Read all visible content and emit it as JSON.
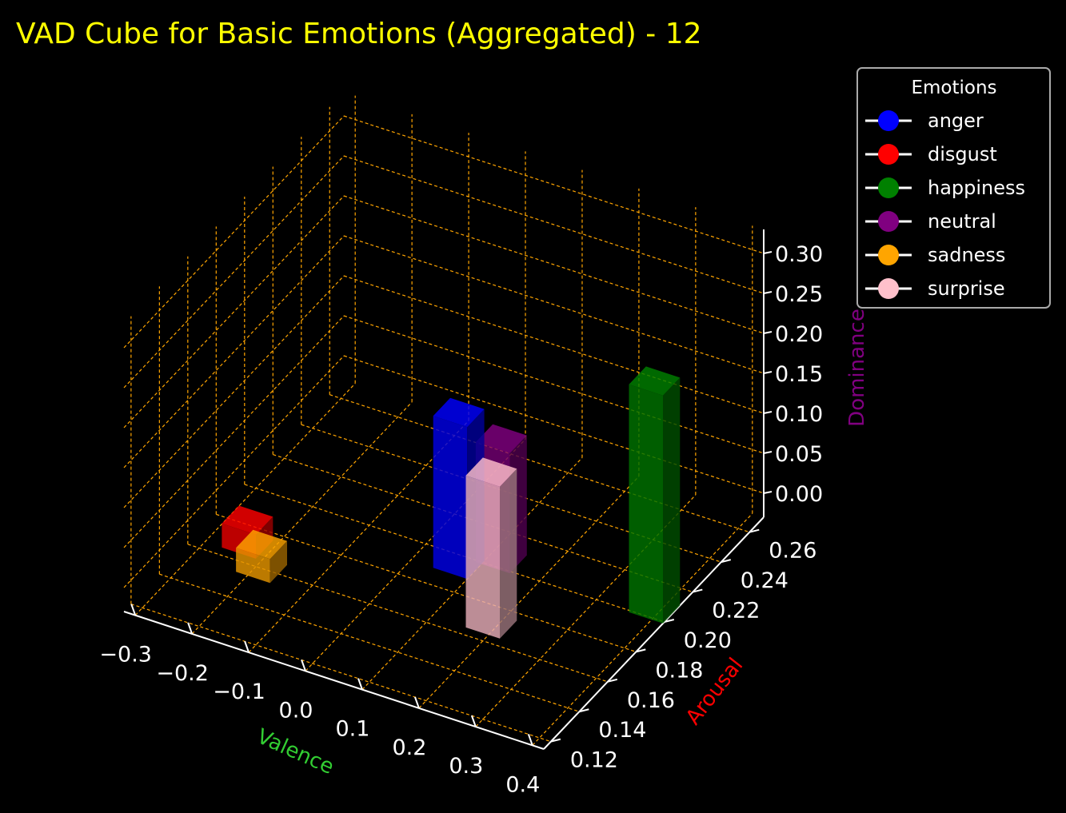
{
  "chart_data": {
    "type": "bar3d",
    "title": "VAD Cube for Basic Emotions (Aggregated) - 12",
    "xlabel": "Valence",
    "ylabel": "Arousal",
    "zlabel": "Dominance",
    "x_ticks": [
      "−0.3",
      "−0.2",
      "−0.1",
      "0.0",
      "0.1",
      "0.2",
      "0.3",
      "0.4"
    ],
    "y_ticks": [
      "0.12",
      "0.14",
      "0.16",
      "0.18",
      "0.20",
      "0.22",
      "0.24",
      "0.26"
    ],
    "z_ticks": [
      "0.00",
      "0.05",
      "0.10",
      "0.15",
      "0.20",
      "0.25",
      "0.30"
    ],
    "xlim": [
      -0.32,
      0.42
    ],
    "ylim": [
      0.115,
      0.27
    ],
    "zlim": [
      -0.03,
      0.33
    ],
    "grid": true,
    "legend": {
      "title": "Emotions",
      "placement": "upper-right"
    },
    "series": [
      {
        "name": "anger",
        "color": "#0000ff",
        "valence": 0.07,
        "arousal": 0.195,
        "dominance": 0.16
      },
      {
        "name": "disgust",
        "color": "#ff0000",
        "valence": -0.24,
        "arousal": 0.17,
        "dominance": 0.0
      },
      {
        "name": "happiness",
        "color": "#008000",
        "valence": 0.39,
        "arousal": 0.205,
        "dominance": 0.255
      },
      {
        "name": "neutral",
        "color": "#800080",
        "valence": 0.12,
        "arousal": 0.205,
        "dominance": 0.12
      },
      {
        "name": "sadness",
        "color": "#ffa500",
        "valence": -0.19,
        "arousal": 0.16,
        "dominance": 0.0
      },
      {
        "name": "surprise",
        "color": "#ffc0cb",
        "valence": 0.19,
        "arousal": 0.17,
        "dominance": 0.16
      }
    ]
  },
  "colors": {
    "title": "#ffff00",
    "xlabel": "#32cd32",
    "ylabel": "#ff0000",
    "zlabel": "#800080",
    "grid": "#ffa500",
    "axis": "#ffffff"
  }
}
